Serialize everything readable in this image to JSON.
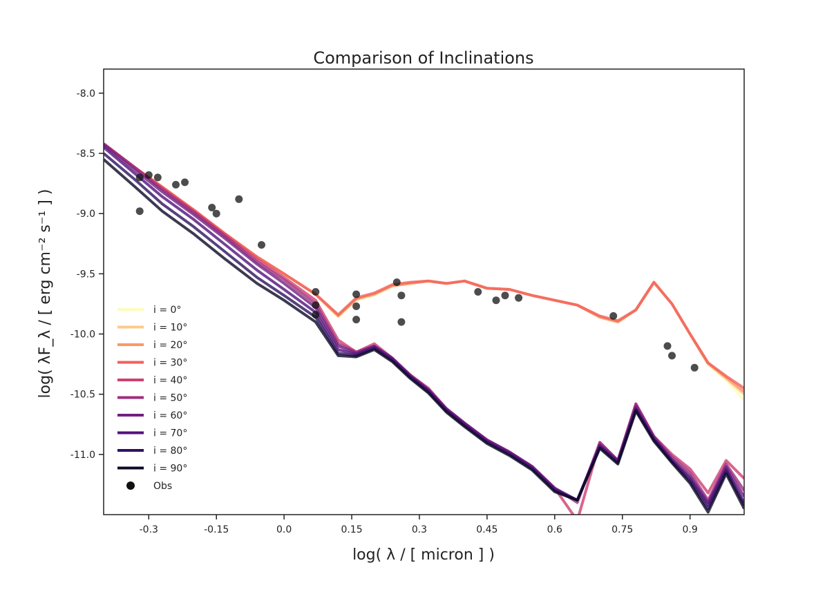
{
  "chart_data": {
    "type": "line",
    "title": "Comparison of Inclinations",
    "xlabel": "log( λ / [ micron ] )",
    "ylabel": "log( λF_λ / [ erg cm⁻² s⁻¹ ] )",
    "xlim": [
      -0.4,
      1.02
    ],
    "ylim": [
      -11.5,
      -7.8
    ],
    "xticks": [
      -0.3,
      -0.15,
      0.0,
      0.15,
      0.3,
      0.45,
      0.6,
      0.75,
      0.9
    ],
    "xtick_labels": [
      "-0.3",
      "-0.15",
      "0.0",
      "0.15",
      "0.3",
      "0.45",
      "0.6",
      "0.75",
      "0.9"
    ],
    "yticks": [
      -8.0,
      -8.5,
      -9.0,
      -9.5,
      -10.0,
      -10.5,
      -11.0
    ],
    "ytick_labels": [
      "-8.0",
      "-8.5",
      "-9.0",
      "-9.5",
      "-10.0",
      "-10.5",
      "-11.0"
    ],
    "grid": false,
    "legend_position": "lower-left",
    "x": [
      -0.4,
      -0.33,
      -0.27,
      -0.2,
      -0.13,
      -0.06,
      0.0,
      0.07,
      0.12,
      0.16,
      0.2,
      0.24,
      0.28,
      0.32,
      0.36,
      0.4,
      0.45,
      0.5,
      0.55,
      0.6,
      0.65,
      0.7,
      0.74,
      0.78,
      0.82,
      0.86,
      0.9,
      0.94,
      0.98,
      1.02
    ],
    "series": [
      {
        "name": "i = 0°",
        "color": "#fcfdbf",
        "values": [
          -8.42,
          -8.62,
          -8.78,
          -8.97,
          -9.17,
          -9.36,
          -9.5,
          -9.67,
          -9.86,
          -9.72,
          -9.68,
          -9.6,
          -9.58,
          -9.56,
          -9.58,
          -9.56,
          -9.62,
          -9.63,
          -9.68,
          -9.72,
          -9.76,
          -9.86,
          -9.9,
          -9.8,
          -9.57,
          -9.75,
          -10.0,
          -10.25,
          -10.38,
          -10.55
        ]
      },
      {
        "name": "i = 10°",
        "color": "#feca8d",
        "values": [
          -8.42,
          -8.62,
          -8.78,
          -8.97,
          -9.17,
          -9.36,
          -9.5,
          -9.67,
          -9.85,
          -9.71,
          -9.67,
          -9.6,
          -9.58,
          -9.56,
          -9.58,
          -9.56,
          -9.62,
          -9.63,
          -9.68,
          -9.72,
          -9.76,
          -9.86,
          -9.9,
          -9.8,
          -9.57,
          -9.75,
          -10.0,
          -10.25,
          -10.37,
          -10.5
        ]
      },
      {
        "name": "i = 20°",
        "color": "#fd9668",
        "values": [
          -8.42,
          -8.62,
          -8.78,
          -8.97,
          -9.17,
          -9.36,
          -9.5,
          -9.67,
          -9.85,
          -9.71,
          -9.67,
          -9.6,
          -9.58,
          -9.56,
          -9.58,
          -9.56,
          -9.62,
          -9.63,
          -9.68,
          -9.72,
          -9.76,
          -9.86,
          -9.9,
          -9.8,
          -9.57,
          -9.75,
          -10.0,
          -10.24,
          -10.36,
          -10.48
        ]
      },
      {
        "name": "i = 30°",
        "color": "#f1605d",
        "values": [
          -8.42,
          -8.62,
          -8.78,
          -8.97,
          -9.17,
          -9.36,
          -9.5,
          -9.67,
          -9.84,
          -9.7,
          -9.66,
          -9.59,
          -9.57,
          -9.56,
          -9.58,
          -9.56,
          -9.62,
          -9.63,
          -9.68,
          -9.72,
          -9.76,
          -9.85,
          -9.89,
          -9.8,
          -9.57,
          -9.75,
          -10.0,
          -10.24,
          -10.35,
          -10.45
        ]
      },
      {
        "name": "i = 40°",
        "color": "#cd4071",
        "values": [
          -8.42,
          -8.62,
          -8.79,
          -8.98,
          -9.18,
          -9.38,
          -9.53,
          -9.72,
          -10.05,
          -10.15,
          -10.08,
          -10.2,
          -10.34,
          -10.45,
          -10.62,
          -10.74,
          -10.88,
          -10.98,
          -11.1,
          -11.28,
          -11.55,
          -10.9,
          -11.05,
          -10.58,
          -10.85,
          -11.0,
          -11.12,
          -11.32,
          -11.05,
          -11.2
        ]
      },
      {
        "name": "i = 50°",
        "color": "#9e2f7f",
        "values": [
          -8.42,
          -8.62,
          -8.8,
          -8.99,
          -9.19,
          -9.4,
          -9.55,
          -9.75,
          -10.08,
          -10.15,
          -10.1,
          -10.2,
          -10.34,
          -10.46,
          -10.62,
          -10.74,
          -10.88,
          -10.98,
          -11.1,
          -11.28,
          -11.4,
          -10.9,
          -11.05,
          -10.58,
          -10.85,
          -11.02,
          -11.15,
          -11.38,
          -11.08,
          -11.3
        ]
      },
      {
        "name": "i = 60°",
        "color": "#721f81",
        "values": [
          -8.43,
          -8.64,
          -8.82,
          -9.01,
          -9.21,
          -9.42,
          -9.58,
          -9.78,
          -10.1,
          -10.16,
          -10.1,
          -10.2,
          -10.35,
          -10.46,
          -10.62,
          -10.74,
          -10.88,
          -10.98,
          -11.1,
          -11.28,
          -11.38,
          -10.92,
          -11.05,
          -10.6,
          -10.86,
          -11.04,
          -11.18,
          -11.4,
          -11.1,
          -11.35
        ]
      },
      {
        "name": "i = 70°",
        "color": "#51127c",
        "values": [
          -8.45,
          -8.67,
          -8.86,
          -9.05,
          -9.26,
          -9.47,
          -9.63,
          -9.82,
          -10.13,
          -10.17,
          -10.11,
          -10.21,
          -10.35,
          -10.47,
          -10.63,
          -10.75,
          -10.89,
          -10.99,
          -11.11,
          -11.29,
          -11.38,
          -10.93,
          -11.06,
          -10.62,
          -10.87,
          -11.05,
          -11.2,
          -11.42,
          -11.12,
          -11.4
        ]
      },
      {
        "name": "i = 80°",
        "color": "#2d1160",
        "values": [
          -8.5,
          -8.72,
          -8.92,
          -9.11,
          -9.32,
          -9.53,
          -9.68,
          -9.86,
          -10.16,
          -10.18,
          -10.12,
          -10.22,
          -10.36,
          -10.48,
          -10.64,
          -10.76,
          -10.9,
          -11.0,
          -11.12,
          -11.3,
          -11.38,
          -10.94,
          -11.07,
          -10.63,
          -10.88,
          -11.06,
          -11.22,
          -11.45,
          -11.14,
          -11.42
        ]
      },
      {
        "name": "i = 90°",
        "color": "#0b0924",
        "values": [
          -8.55,
          -8.78,
          -8.98,
          -9.17,
          -9.38,
          -9.58,
          -9.72,
          -9.9,
          -10.18,
          -10.19,
          -10.13,
          -10.23,
          -10.37,
          -10.49,
          -10.65,
          -10.77,
          -10.91,
          -11.01,
          -11.13,
          -11.31,
          -11.38,
          -10.95,
          -11.08,
          -10.64,
          -10.89,
          -11.07,
          -11.24,
          -11.48,
          -11.16,
          -11.45
        ]
      }
    ],
    "observed": {
      "name": "Obs",
      "color": "#111111",
      "points": [
        [
          -0.32,
          -8.7
        ],
        [
          -0.3,
          -8.68
        ],
        [
          -0.28,
          -8.7
        ],
        [
          -0.24,
          -8.76
        ],
        [
          -0.22,
          -8.74
        ],
        [
          -0.32,
          -8.98
        ],
        [
          -0.16,
          -8.95
        ],
        [
          -0.15,
          -9.0
        ],
        [
          -0.1,
          -8.88
        ],
        [
          -0.05,
          -9.26
        ],
        [
          0.07,
          -9.65
        ],
        [
          0.07,
          -9.76
        ],
        [
          0.07,
          -9.84
        ],
        [
          0.16,
          -9.67
        ],
        [
          0.16,
          -9.77
        ],
        [
          0.16,
          -9.88
        ],
        [
          0.25,
          -9.57
        ],
        [
          0.26,
          -9.68
        ],
        [
          0.26,
          -9.9
        ],
        [
          0.43,
          -9.65
        ],
        [
          0.47,
          -9.72
        ],
        [
          0.49,
          -9.68
        ],
        [
          0.52,
          -9.7
        ],
        [
          0.73,
          -9.85
        ],
        [
          0.85,
          -10.1
        ],
        [
          0.86,
          -10.18
        ],
        [
          0.91,
          -10.28
        ]
      ]
    }
  }
}
